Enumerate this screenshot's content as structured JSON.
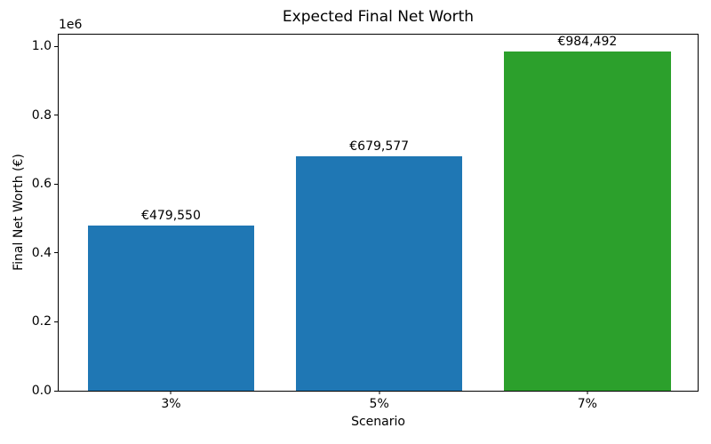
{
  "figure": {
    "title": "Expected Final Net Worth",
    "xlabel": "Scenario",
    "ylabel": "Final Net Worth (€)",
    "y_offset_text": "1e6"
  },
  "chart_data": {
    "type": "bar",
    "title": "Expected Final Net Worth",
    "xlabel": "Scenario",
    "ylabel": "Final Net Worth (€)",
    "categories": [
      "3%",
      "5%",
      "7%"
    ],
    "values": [
      479550,
      679577,
      984492
    ],
    "bar_labels": [
      "€479,550",
      "€679,577",
      "€984,492"
    ],
    "bar_colors": [
      "#1f77b4",
      "#1f77b4",
      "#2ca02c"
    ],
    "bar_width": 0.8,
    "xlim": [
      -0.54,
      2.53
    ],
    "ylim": [
      0,
      1033717
    ],
    "yticks": [
      0,
      200000,
      400000,
      600000,
      800000,
      1000000
    ],
    "ytick_labels": [
      "0.0",
      "0.2",
      "0.4",
      "0.6",
      "0.8",
      "1.0"
    ],
    "y_offset_text": "1e6",
    "grid": false,
    "legend": null,
    "background_color": "#ffffff",
    "spine_color": "#000000",
    "text_color": "#000000"
  }
}
